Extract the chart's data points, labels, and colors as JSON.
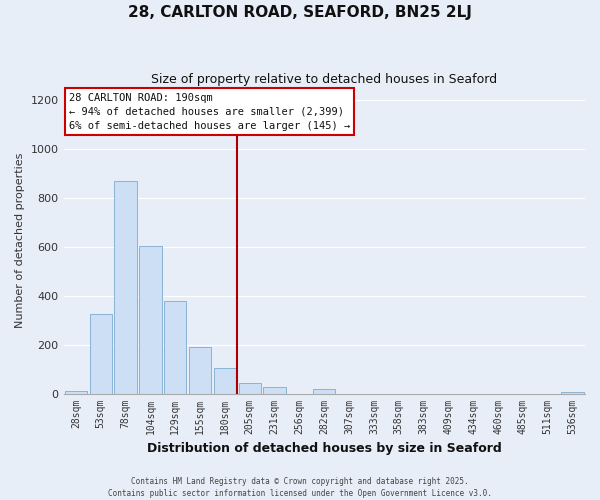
{
  "title": "28, CARLTON ROAD, SEAFORD, BN25 2LJ",
  "subtitle": "Size of property relative to detached houses in Seaford",
  "xlabel": "Distribution of detached houses by size in Seaford",
  "ylabel": "Number of detached properties",
  "bin_labels": [
    "28sqm",
    "53sqm",
    "78sqm",
    "104sqm",
    "129sqm",
    "155sqm",
    "180sqm",
    "205sqm",
    "231sqm",
    "256sqm",
    "282sqm",
    "307sqm",
    "333sqm",
    "358sqm",
    "383sqm",
    "409sqm",
    "434sqm",
    "460sqm",
    "485sqm",
    "511sqm",
    "536sqm"
  ],
  "bar_values": [
    10,
    325,
    870,
    605,
    380,
    190,
    105,
    45,
    25,
    0,
    20,
    0,
    0,
    0,
    0,
    0,
    0,
    0,
    0,
    0,
    5
  ],
  "bar_color": "#ccdff5",
  "bar_edge_color": "#8ab4d4",
  "vline_x": 6.5,
  "vline_color": "#aa0000",
  "ylim": [
    0,
    1250
  ],
  "yticks": [
    0,
    200,
    400,
    600,
    800,
    1000,
    1200
  ],
  "annotation_title": "28 CARLTON ROAD: 190sqm",
  "annotation_line1": "← 94% of detached houses are smaller (2,399)",
  "annotation_line2": "6% of semi-detached houses are larger (145) →",
  "annotation_box_color": "#ffffff",
  "annotation_border_color": "#cc0000",
  "footer_line1": "Contains HM Land Registry data © Crown copyright and database right 2025.",
  "footer_line2": "Contains public sector information licensed under the Open Government Licence v3.0.",
  "background_color": "#e8eef8",
  "grid_color": "#ffffff"
}
